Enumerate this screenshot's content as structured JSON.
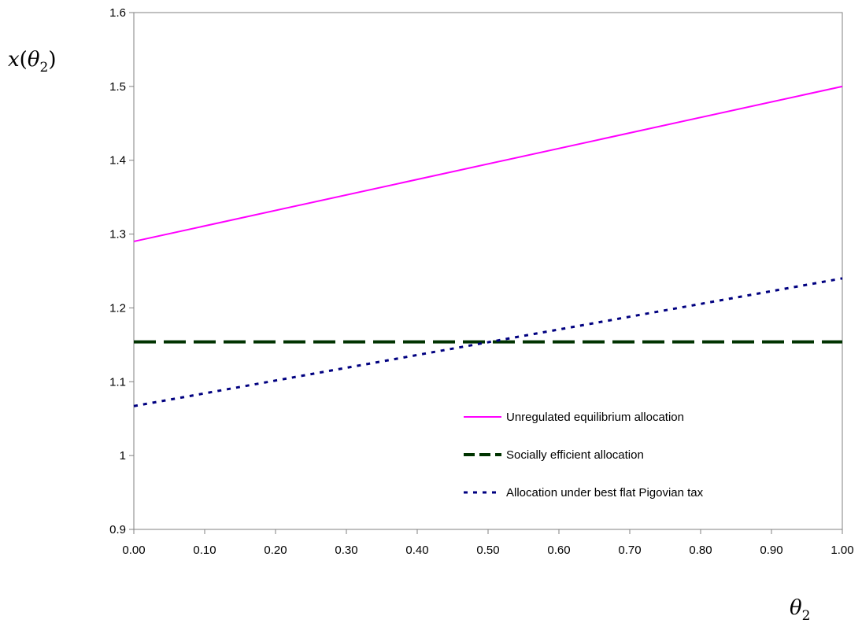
{
  "chart_data": {
    "type": "line",
    "title": "",
    "xlabel": "θ2",
    "ylabel": "x(θ2)",
    "xlim": [
      0,
      1
    ],
    "ylim": [
      0.9,
      1.6
    ],
    "x_ticks": [
      "0.00",
      "0.10",
      "0.20",
      "0.30",
      "0.40",
      "0.50",
      "0.60",
      "0.70",
      "0.80",
      "0.90",
      "1.00"
    ],
    "y_ticks": [
      "0.9",
      "1",
      "1.1",
      "1.2",
      "1.3",
      "1.4",
      "1.5",
      "1.6"
    ],
    "x": [
      0,
      1
    ],
    "series": [
      {
        "name": "Unregulated equilibrium allocation",
        "values": [
          1.29,
          1.5
        ],
        "color": "#FF00FF",
        "style": "solid"
      },
      {
        "name": "Socially efficient allocation",
        "values": [
          1.154,
          1.154
        ],
        "color": "#003300",
        "style": "dashed"
      },
      {
        "name": "Allocation under best flat Pigovian tax",
        "values": [
          1.067,
          1.24
        ],
        "color": "#000080",
        "style": "dotted"
      }
    ],
    "grid": false,
    "legend_position": "inside-bottom-right"
  }
}
